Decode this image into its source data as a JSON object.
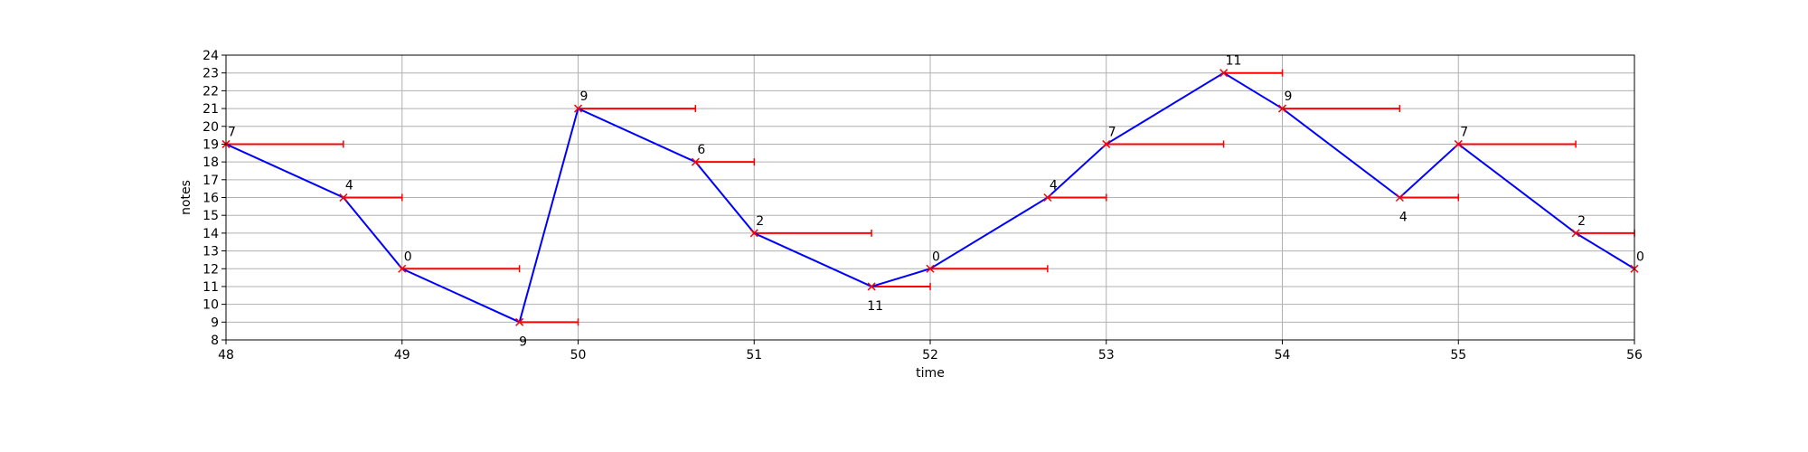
{
  "chart_data": {
    "type": "line",
    "xlabel": "time",
    "ylabel": "notes",
    "xlim": [
      48,
      56
    ],
    "ylim": [
      8,
      24
    ],
    "xticks": [
      48,
      49,
      50,
      51,
      52,
      53,
      54,
      55,
      56
    ],
    "yticks": [
      8,
      9,
      10,
      11,
      12,
      13,
      14,
      15,
      16,
      17,
      18,
      19,
      20,
      21,
      22,
      23,
      24
    ],
    "grid": true,
    "line_color": "#0000ff",
    "marker_color": "#ff0000",
    "duration_color": "#ff0000",
    "points": [
      {
        "x": 48.0,
        "y": 19,
        "label": "7",
        "label_pos": "above",
        "duration": 0.6667
      },
      {
        "x": 48.667,
        "y": 16,
        "label": "4",
        "label_pos": "above",
        "duration": 0.3333
      },
      {
        "x": 49.0,
        "y": 12,
        "label": "0",
        "label_pos": "above",
        "duration": 0.6667
      },
      {
        "x": 49.667,
        "y": 9,
        "label": "9",
        "label_pos": "below",
        "duration": 0.3333
      },
      {
        "x": 50.0,
        "y": 21,
        "label": "9",
        "label_pos": "above",
        "duration": 0.6667
      },
      {
        "x": 50.667,
        "y": 18,
        "label": "6",
        "label_pos": "above",
        "duration": 0.3333
      },
      {
        "x": 51.0,
        "y": 14,
        "label": "2",
        "label_pos": "above",
        "duration": 0.6667
      },
      {
        "x": 51.667,
        "y": 11,
        "label": "11",
        "label_pos": "below",
        "duration": 0.3333
      },
      {
        "x": 52.0,
        "y": 12,
        "label": "0",
        "label_pos": "above",
        "duration": 0.6667
      },
      {
        "x": 52.667,
        "y": 16,
        "label": "4",
        "label_pos": "above",
        "duration": 0.3333
      },
      {
        "x": 53.0,
        "y": 19,
        "label": "7",
        "label_pos": "above",
        "duration": 0.6667
      },
      {
        "x": 53.667,
        "y": 23,
        "label": "11",
        "label_pos": "above",
        "duration": 0.3333
      },
      {
        "x": 54.0,
        "y": 21,
        "label": "9",
        "label_pos": "above",
        "duration": 0.6667
      },
      {
        "x": 54.667,
        "y": 16,
        "label": "4",
        "label_pos": "below",
        "duration": 0.3333
      },
      {
        "x": 55.0,
        "y": 19,
        "label": "7",
        "label_pos": "above",
        "duration": 0.6667
      },
      {
        "x": 55.667,
        "y": 14,
        "label": "2",
        "label_pos": "above",
        "duration": 0.3333
      },
      {
        "x": 56.0,
        "y": 12,
        "label": "0",
        "label_pos": "above",
        "duration": 0.0
      }
    ]
  }
}
